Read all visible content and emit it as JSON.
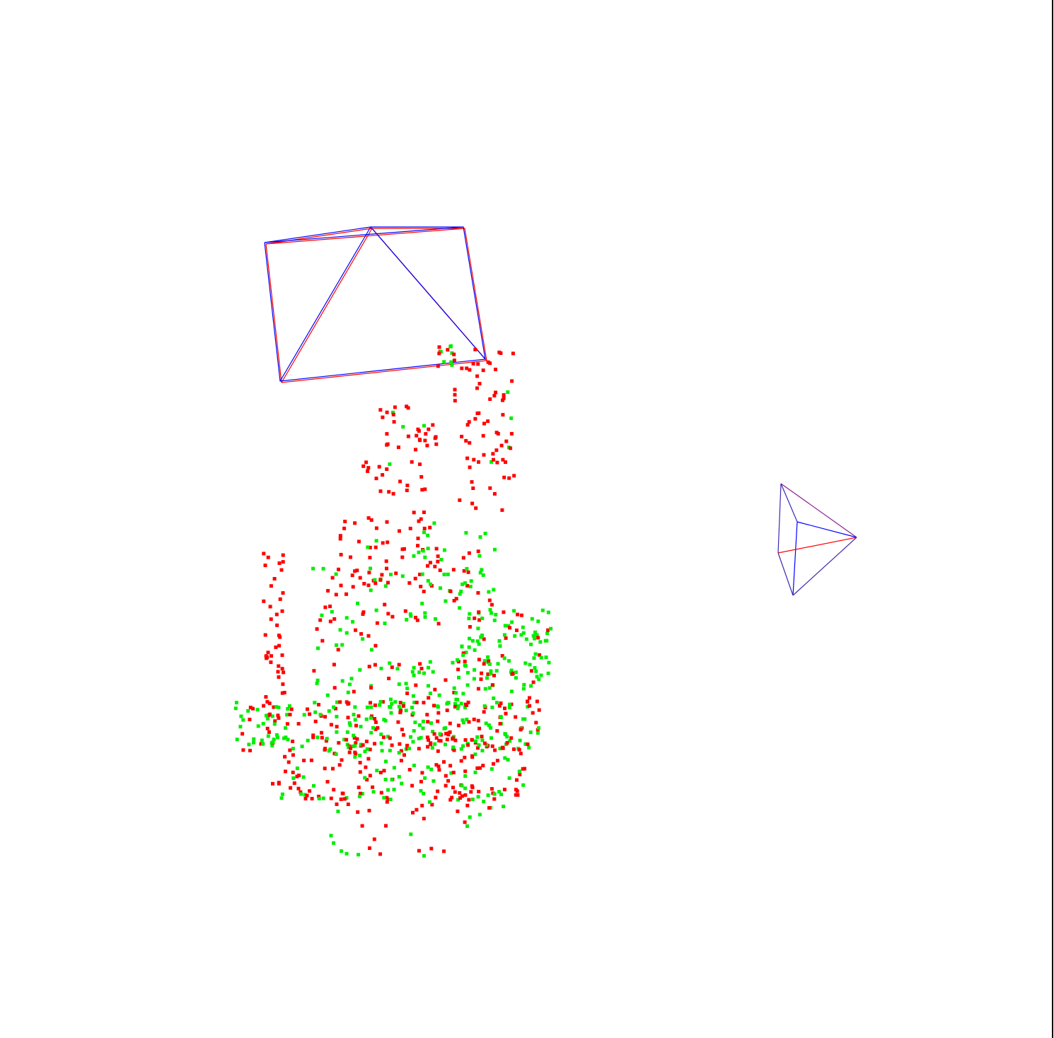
{
  "viewer": {
    "background": "#ffffff",
    "colors": {
      "point_set_a": "#ff0000",
      "point_set_b": "#00ee00",
      "frustum_red": "#ff0000",
      "frustum_blue": "#0000ff"
    },
    "camera_frustums": [
      "camera-frustum-1",
      "camera-frustum-2"
    ]
  }
}
